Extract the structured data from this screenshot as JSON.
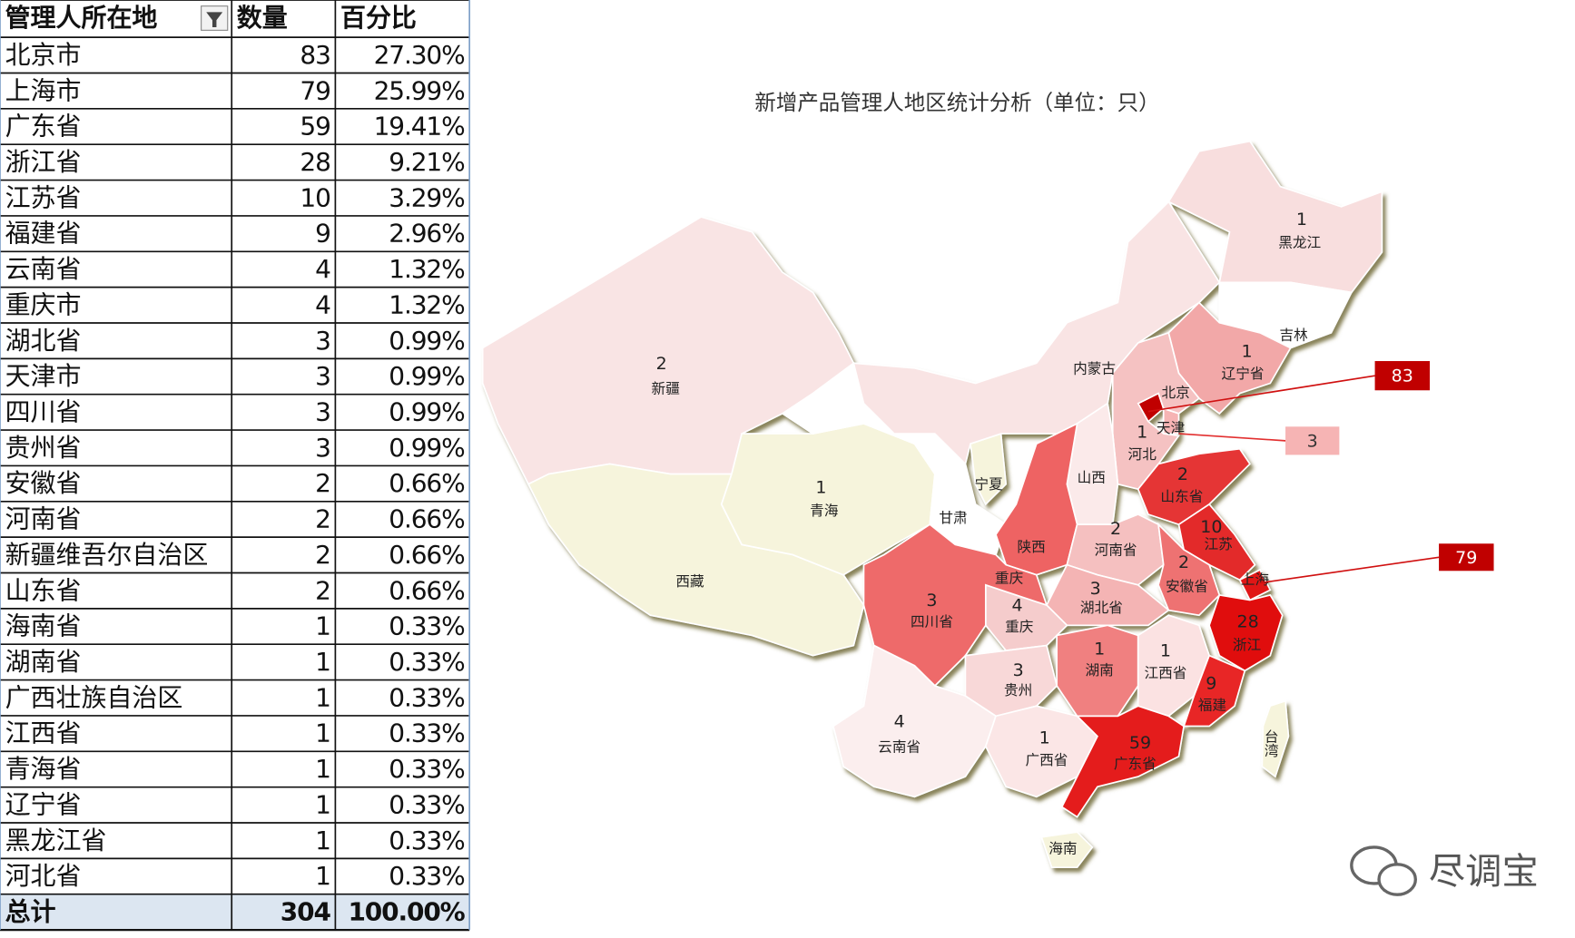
{
  "table": {
    "header": [
      "管理人所在地",
      "数量",
      "百分比"
    ],
    "rows": [
      [
        "北京市",
        "83",
        "27.30%"
      ],
      [
        "上海市",
        "79",
        "25.99%"
      ],
      [
        "广东省",
        "59",
        "19.41%"
      ],
      [
        "浙江省",
        "28",
        "9.21%"
      ],
      [
        "江苏省",
        "10",
        "3.29%"
      ],
      [
        "福建省",
        "9",
        "2.96%"
      ],
      [
        "云南省",
        "4",
        "1.32%"
      ],
      [
        "重庆市",
        "4",
        "1.32%"
      ],
      [
        "湖北省",
        "3",
        "0.99%"
      ],
      [
        "天津市",
        "3",
        "0.99%"
      ],
      [
        "四川省",
        "3",
        "0.99%"
      ],
      [
        "贵州省",
        "3",
        "0.99%"
      ],
      [
        "安徽省",
        "2",
        "0.66%"
      ],
      [
        "河南省",
        "2",
        "0.66%"
      ],
      [
        "新疆维吾尔自治区",
        "2",
        "0.66%"
      ],
      [
        "山东省",
        "2",
        "0.66%"
      ],
      [
        "海南省",
        "1",
        "0.33%"
      ],
      [
        "湖南省",
        "1",
        "0.33%"
      ],
      [
        "广西壮族自治区",
        "1",
        "0.33%"
      ],
      [
        "江西省",
        "1",
        "0.33%"
      ],
      [
        "青海省",
        "1",
        "0.33%"
      ],
      [
        "辽宁省",
        "1",
        "0.33%"
      ],
      [
        "黑龙江省",
        "1",
        "0.33%"
      ],
      [
        "河北省",
        "1",
        "0.33%"
      ]
    ],
    "total": [
      "总计",
      "304",
      "100.00%"
    ]
  },
  "map": {
    "title": "新增产品管理人地区统计分析（单位：只）",
    "regions": [
      {
        "name": "新疆",
        "value": 2,
        "color": "#f9e4e4"
      },
      {
        "name": "西藏",
        "color": "#f6f4dc"
      },
      {
        "name": "青海",
        "value": 1,
        "color": "#f6f4dc"
      },
      {
        "name": "甘肃",
        "color": "#ffffff"
      },
      {
        "name": "宁夏",
        "color": "#f6f4dc"
      },
      {
        "name": "内蒙古",
        "color": "#f9e4e4"
      },
      {
        "name": "黑龙江",
        "value": 1,
        "color": "#f8dede"
      },
      {
        "name": "吉林",
        "color": "#ffffff"
      },
      {
        "name": "辽宁省",
        "value": 1,
        "color": "#f2a8a8"
      },
      {
        "name": "北京",
        "color": "#c00000"
      },
      {
        "name": "天津",
        "color": "#f6b4b4"
      },
      {
        "name": "河北",
        "value": 1,
        "color": "#f5c2c2"
      },
      {
        "name": "山西",
        "color": "#fbeaea"
      },
      {
        "name": "陕西",
        "color": "#ee6464"
      },
      {
        "name": "山东省",
        "value": 2,
        "color": "#e53535"
      },
      {
        "name": "河南省",
        "value": 2,
        "color": "#f5c0c0"
      },
      {
        "name": "江苏",
        "value": 10,
        "color": "#e32a2a"
      },
      {
        "name": "安徽省",
        "value": 2,
        "color": "#ee7272"
      },
      {
        "name": "上海",
        "color": "#e01818"
      },
      {
        "name": "浙江",
        "value": 28,
        "color": "#e01010"
      },
      {
        "name": "湖北省",
        "value": 3,
        "color": "#f4b4b4"
      },
      {
        "name": "重庆",
        "value": 4,
        "color": "#f5cccc"
      },
      {
        "name": "四川省",
        "value": 3,
        "color": "#ee6a6a"
      },
      {
        "name": "湖南",
        "value": 1,
        "color": "#f08080"
      },
      {
        "name": "江西省",
        "value": 1,
        "color": "#fbe2e2"
      },
      {
        "name": "福建",
        "value": 9,
        "color": "#e82828"
      },
      {
        "name": "贵州",
        "value": 3,
        "color": "#f8d8d8"
      },
      {
        "name": "云南省",
        "value": 4,
        "color": "#fbeeee"
      },
      {
        "name": "广西省",
        "value": 1,
        "color": "#fbe6e6"
      },
      {
        "name": "广东省",
        "value": 59,
        "color": "#e41c1c"
      },
      {
        "name": "海南",
        "color": "#f6f4dc"
      },
      {
        "name": "台湾",
        "color": "#f6f4dc"
      }
    ],
    "extra_labels": [
      "重庆"
    ],
    "callouts": [
      {
        "value": 83,
        "color": "#c00000"
      },
      {
        "value": 3,
        "color": "#f6b4b4"
      },
      {
        "value": 79,
        "color": "#c00000"
      }
    ]
  },
  "watermark": "尽调宝"
}
